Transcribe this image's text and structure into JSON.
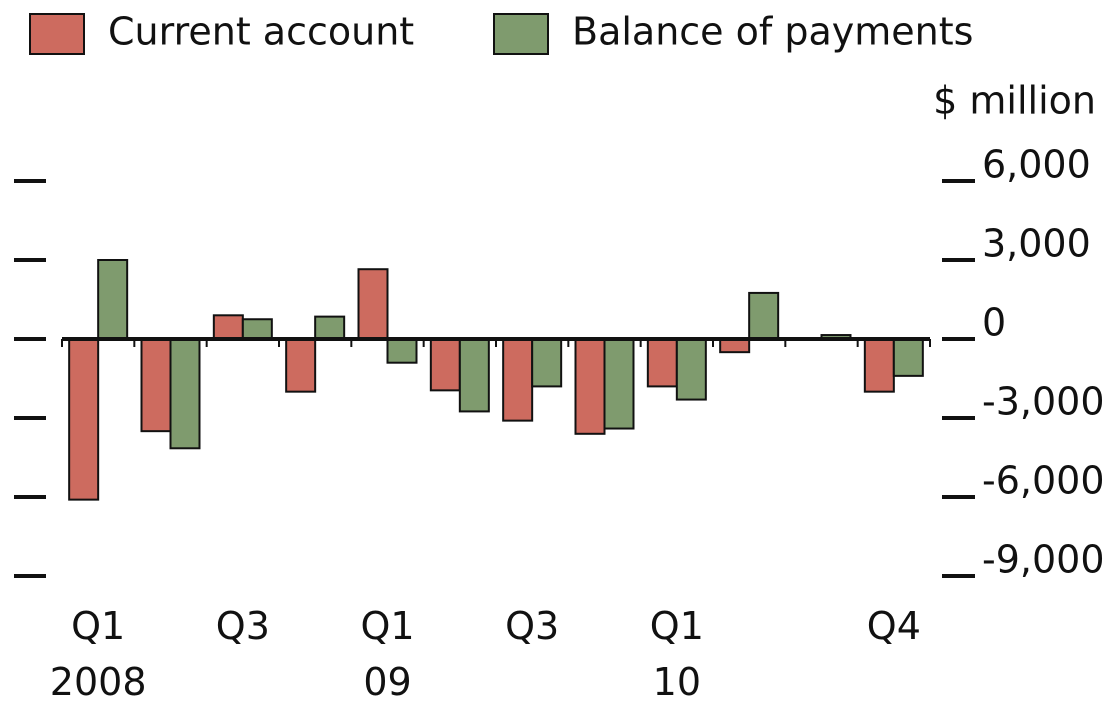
{
  "chart_data": {
    "type": "bar",
    "y_label": "$ million",
    "categories": [
      "Q1 2008",
      null,
      "Q3",
      null,
      "Q1 09",
      null,
      "Q3",
      null,
      "Q1 10",
      null,
      null,
      "Q4"
    ],
    "series": [
      {
        "name": "Current account",
        "color": "#cd6b5f",
        "values": [
          -6100,
          -3500,
          900,
          -2000,
          2650,
          -1950,
          -3100,
          -3600,
          -1800,
          -500,
          0,
          -2000
        ]
      },
      {
        "name": "Balance of payments",
        "color": "#7f9b6e",
        "values": [
          3000,
          -4150,
          750,
          850,
          -900,
          -2750,
          -1800,
          -3400,
          -2300,
          1750,
          150,
          -1400
        ]
      }
    ],
    "ylim": [
      -9000,
      6000
    ],
    "yticks": [
      {
        "value": -9000,
        "label": "-9,000"
      },
      {
        "value": -6000,
        "label": "-6,000"
      },
      {
        "value": -3000,
        "label": "-3,000"
      },
      0,
      {
        "value": 3000,
        "label": "3,000"
      },
      {
        "value": 6000,
        "label": "6,000"
      }
    ]
  }
}
